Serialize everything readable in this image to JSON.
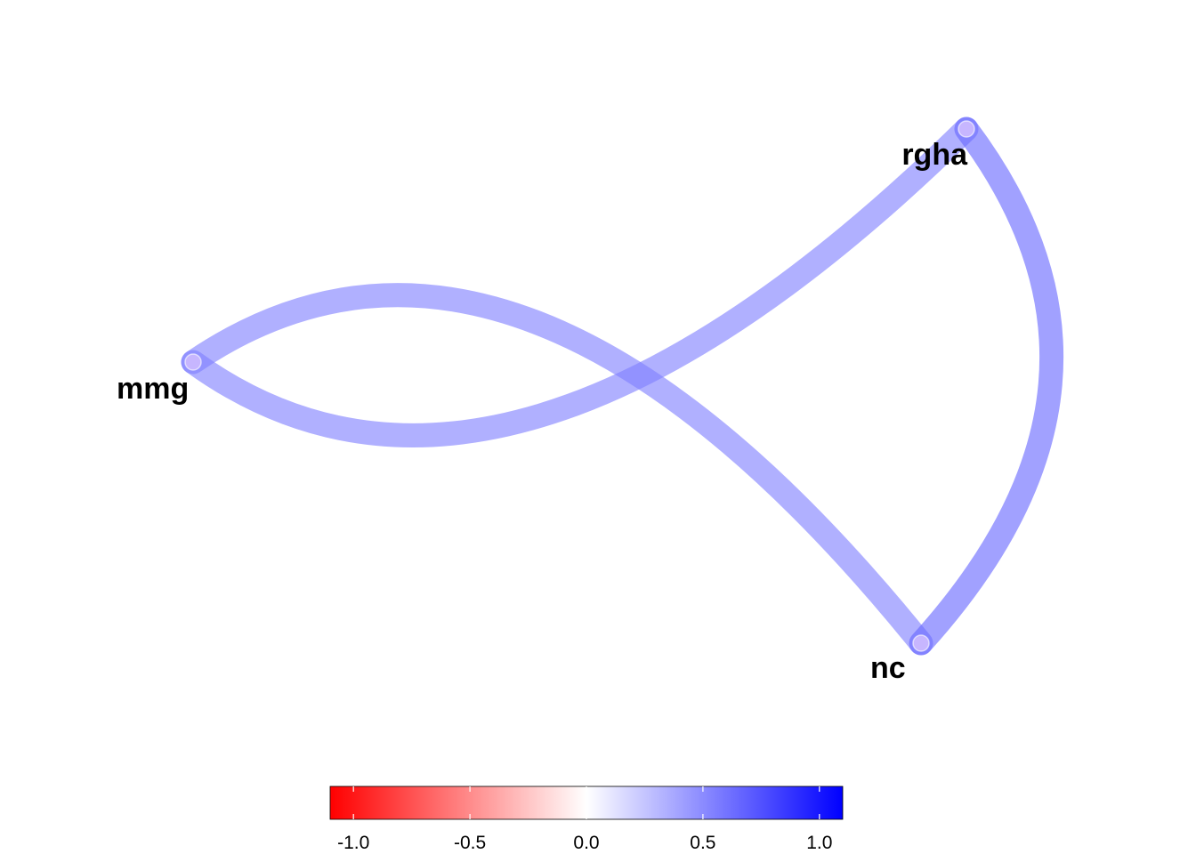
{
  "chart_data": {
    "type": "network",
    "nodes": [
      "mmg",
      "rgha",
      "nc"
    ],
    "edges": [
      {
        "from": "mmg",
        "to": "rgha",
        "value": 0.55
      },
      {
        "from": "mmg",
        "to": "nc",
        "value": 0.55
      },
      {
        "from": "rgha",
        "to": "nc",
        "value": 0.65
      }
    ],
    "colorbar": {
      "range": [
        -1.1,
        1.1
      ],
      "ticks": [
        -1.0,
        -0.5,
        0.0,
        0.5,
        1.0
      ],
      "tick_labels": [
        "-1.0",
        "-0.5",
        "0.0",
        "0.5",
        "1.0"
      ],
      "colors": {
        "low": "#ff0000",
        "mid": "#ffffff",
        "high": "#0000ff"
      }
    }
  }
}
